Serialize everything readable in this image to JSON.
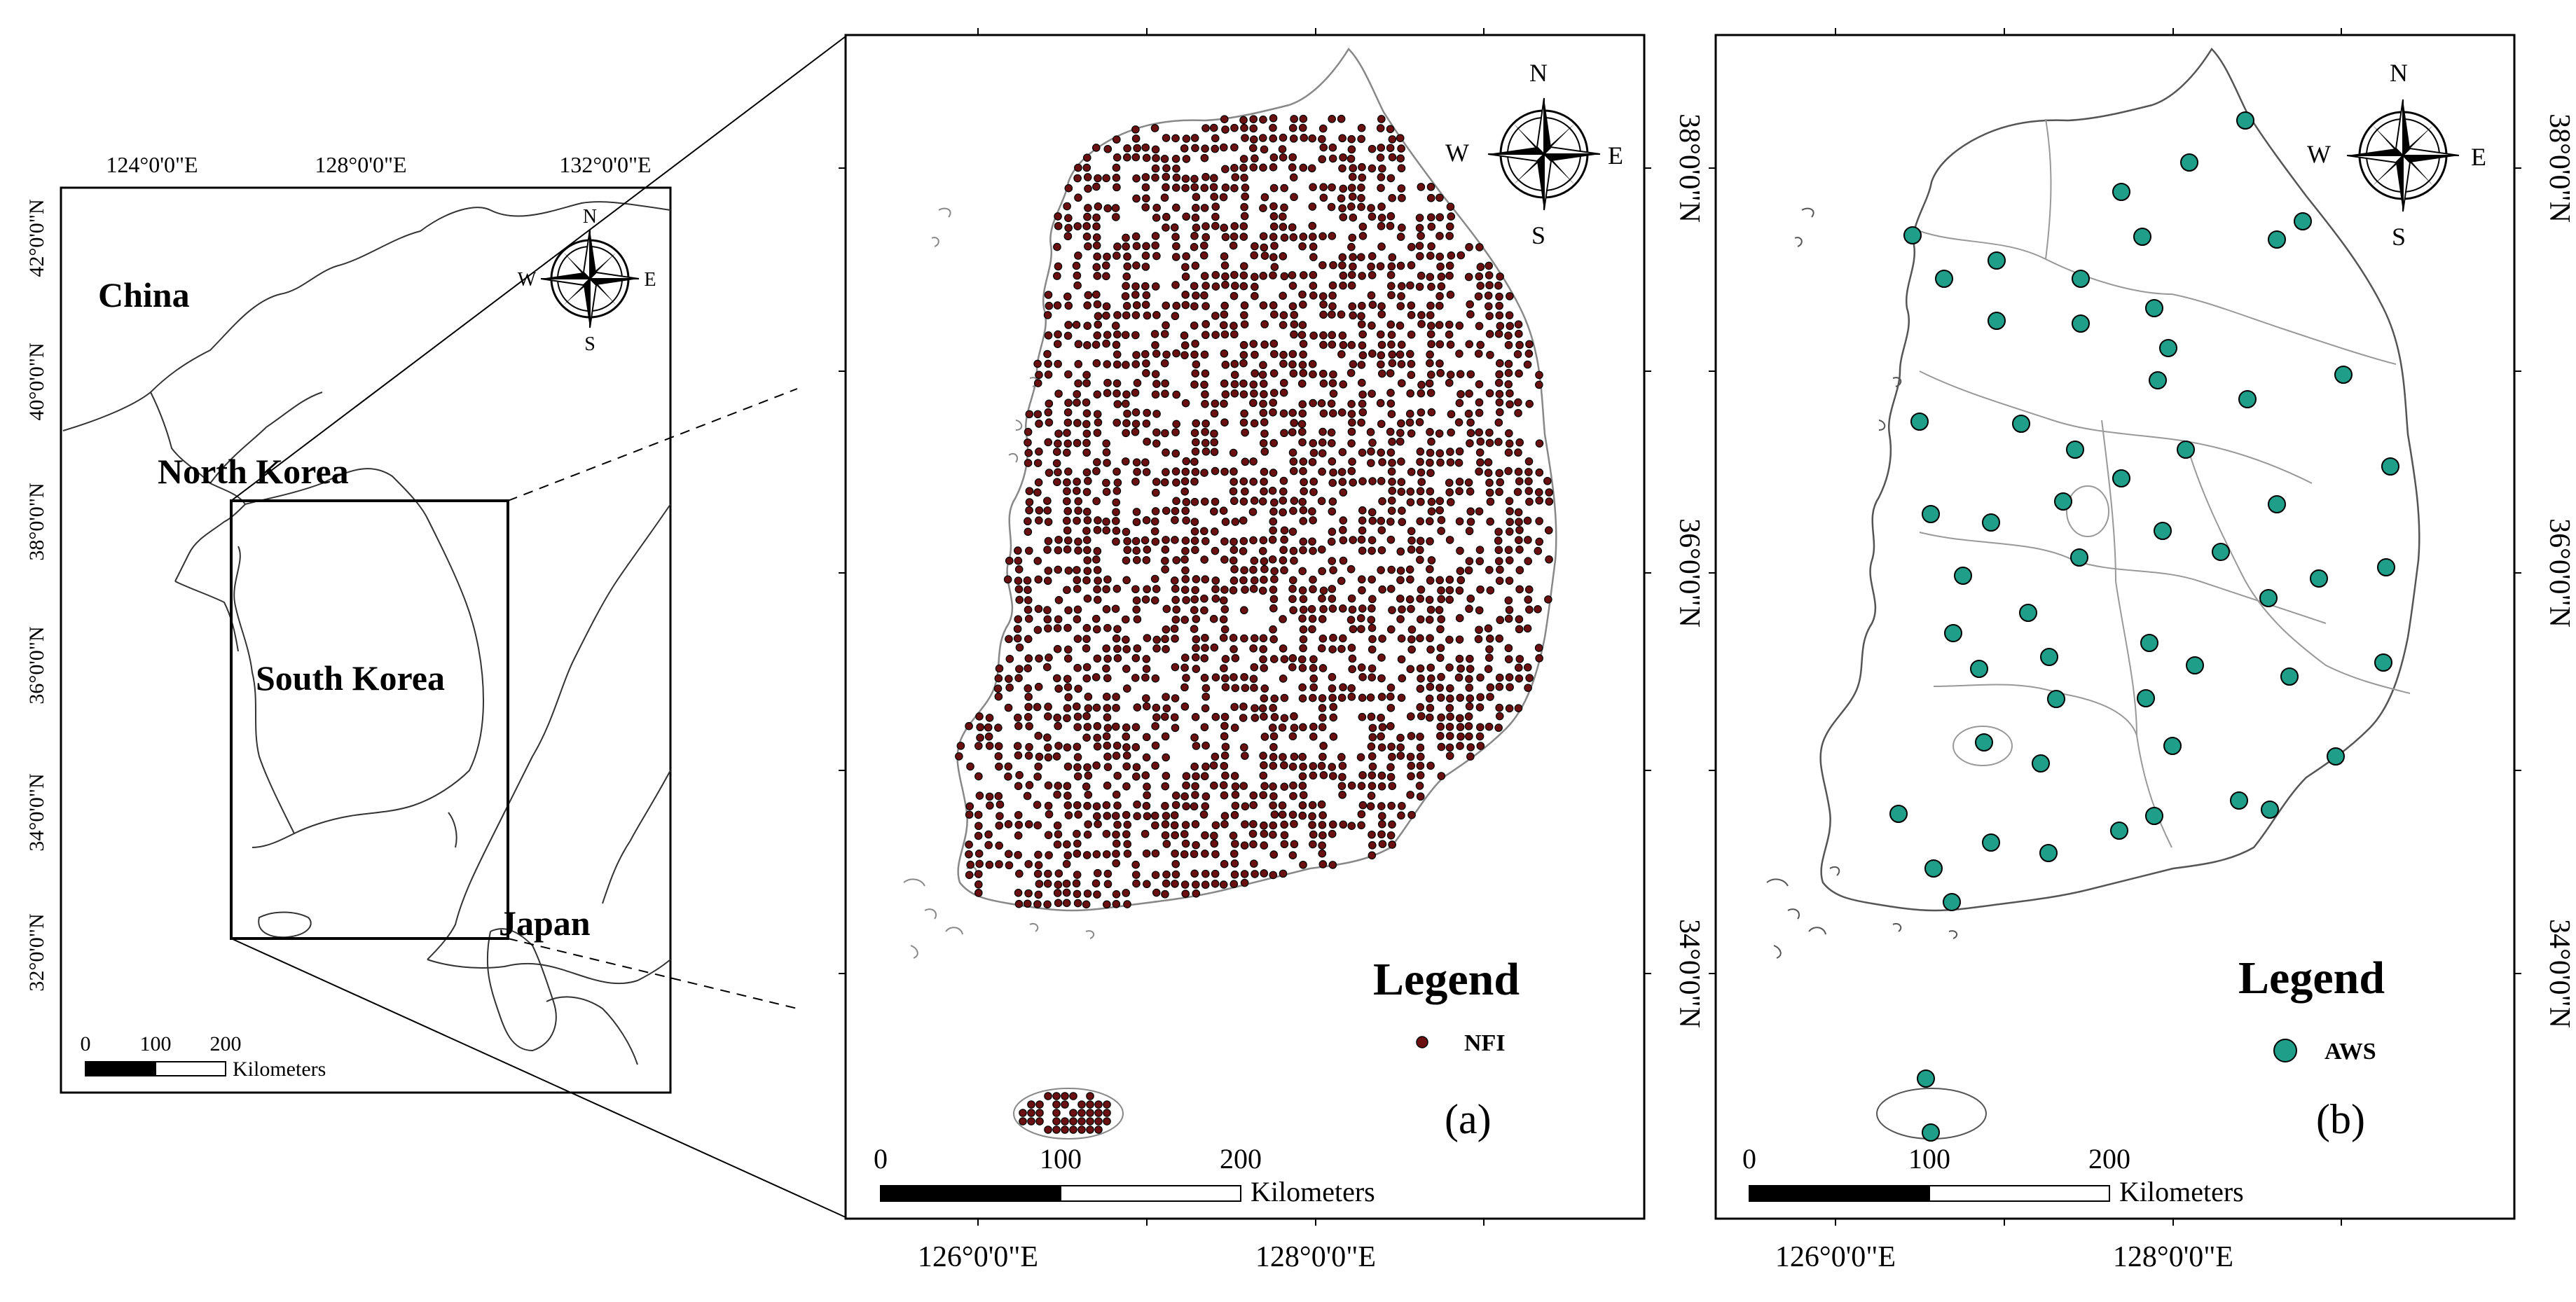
{
  "overview_map": {
    "lon_labels": [
      "124°0'0\"E",
      "128°0'0\"E",
      "132°0'0\"E"
    ],
    "lat_labels": [
      "42°0'0\"N",
      "40°0'0\"N",
      "38°0'0\"N",
      "36°0'0\"N",
      "34°0'0\"N",
      "32°0'0\"N"
    ],
    "countries": [
      "China",
      "North Korea",
      "South Korea",
      "Japan"
    ],
    "compass": {
      "n": "N",
      "s": "S",
      "e": "E",
      "w": "W"
    },
    "scale_labels": [
      "0",
      "100",
      "200"
    ],
    "scale_unit": "Kilometers"
  },
  "panel_a": {
    "panel_label": "(a)",
    "legend_title": "Legend",
    "legend_item": "NFI",
    "point_color": "#6b1010",
    "lon_labels": [
      "126°0'0\"E",
      "128°0'0\"E"
    ],
    "lat_labels": [
      "38°0'0\"N",
      "36°0'0\"N",
      "34°0'0\"N"
    ],
    "compass": {
      "n": "N",
      "s": "S",
      "e": "E",
      "w": "W"
    },
    "scale_labels": [
      "0",
      "100",
      "200"
    ],
    "scale_unit": "Kilometers"
  },
  "panel_b": {
    "panel_label": "(b)",
    "legend_title": "Legend",
    "legend_item": "AWS",
    "point_color": "#1f9e8a",
    "lon_labels": [
      "126°0'0\"E",
      "128°0'0\"E"
    ],
    "lat_labels": [
      "38°0'0\"N",
      "36°0'0\"N",
      "34°0'0\"N"
    ],
    "compass": {
      "n": "N",
      "s": "S",
      "e": "E",
      "w": "W"
    },
    "scale_labels": [
      "0",
      "100",
      "200"
    ],
    "scale_unit": "Kilometers"
  }
}
